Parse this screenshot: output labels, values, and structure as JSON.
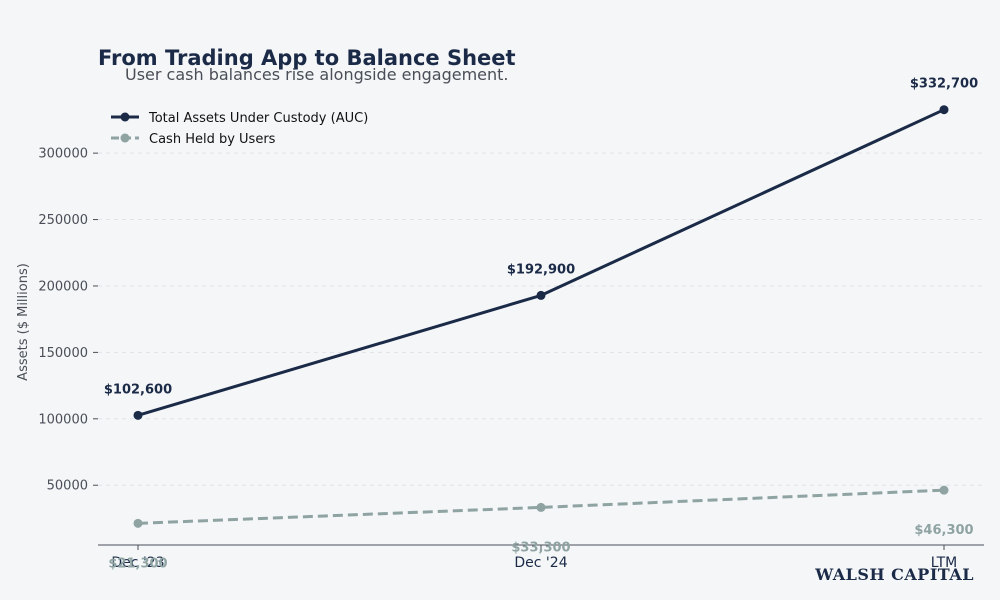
{
  "chart_data": {
    "type": "line",
    "title": "From Trading App to Balance Sheet",
    "subtitle": "User cash balances rise alongside engagement.",
    "xlabel": "",
    "ylabel": "Assets ($ Millions)",
    "categories": [
      "Dec '23",
      "Dec '24",
      "LTM"
    ],
    "ylim": [
      5000,
      340000
    ],
    "yticks": [
      50000,
      100000,
      150000,
      200000,
      250000,
      300000
    ],
    "grid": true,
    "legend_position": "top-left",
    "series": [
      {
        "name": "Total Assets Under Custody (AUC)",
        "values": [
          102600,
          192900,
          332700
        ],
        "labels": [
          "$102,600",
          "$192,900",
          "$332,700"
        ],
        "color": "#1b2a47",
        "style": "solid"
      },
      {
        "name": "Cash Held by Users",
        "values": [
          21300,
          33300,
          46300
        ],
        "labels": [
          "$21,300",
          "$33,300",
          "$46,300"
        ],
        "color": "#8fa3a3",
        "style": "dashed"
      }
    ]
  },
  "brand": "WALSH CAPITAL"
}
